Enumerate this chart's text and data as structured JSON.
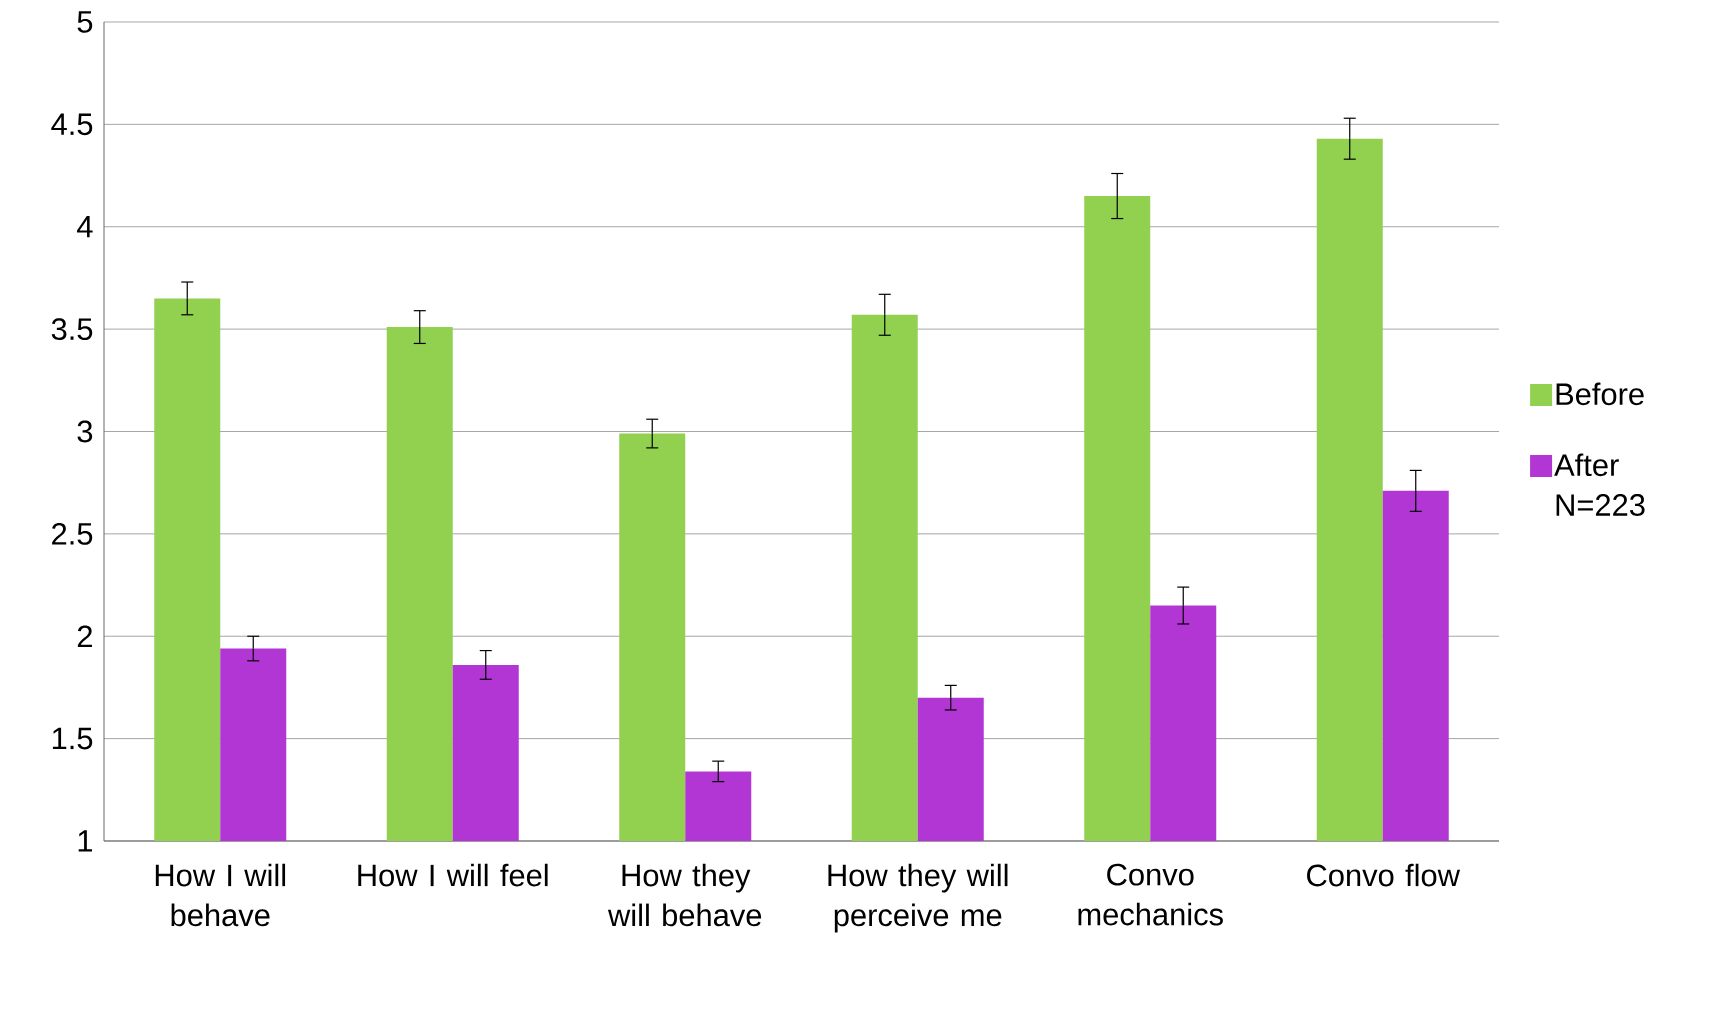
{
  "chart_data": {
    "type": "bar",
    "categories": [
      "How I will behave",
      "How I will feel",
      "How they will behave",
      "How they will perceive me",
      "Convo mechanics",
      "Convo flow"
    ],
    "series": [
      {
        "name": "Before",
        "color": "#92d050",
        "values": [
          3.65,
          3.51,
          2.99,
          3.57,
          4.15,
          4.43
        ],
        "errors": [
          0.08,
          0.08,
          0.07,
          0.1,
          0.11,
          0.1
        ]
      },
      {
        "name": "After N=223",
        "color": "#b236d4",
        "values": [
          1.94,
          1.86,
          1.34,
          1.7,
          2.15,
          2.71
        ],
        "errors": [
          0.06,
          0.07,
          0.05,
          0.06,
          0.09,
          0.1
        ]
      }
    ],
    "ylim": [
      1,
      5
    ],
    "yticks": [
      1,
      1.5,
      2,
      2.5,
      3,
      3.5,
      4,
      4.5,
      5
    ],
    "grid": "y",
    "legend": "right"
  }
}
